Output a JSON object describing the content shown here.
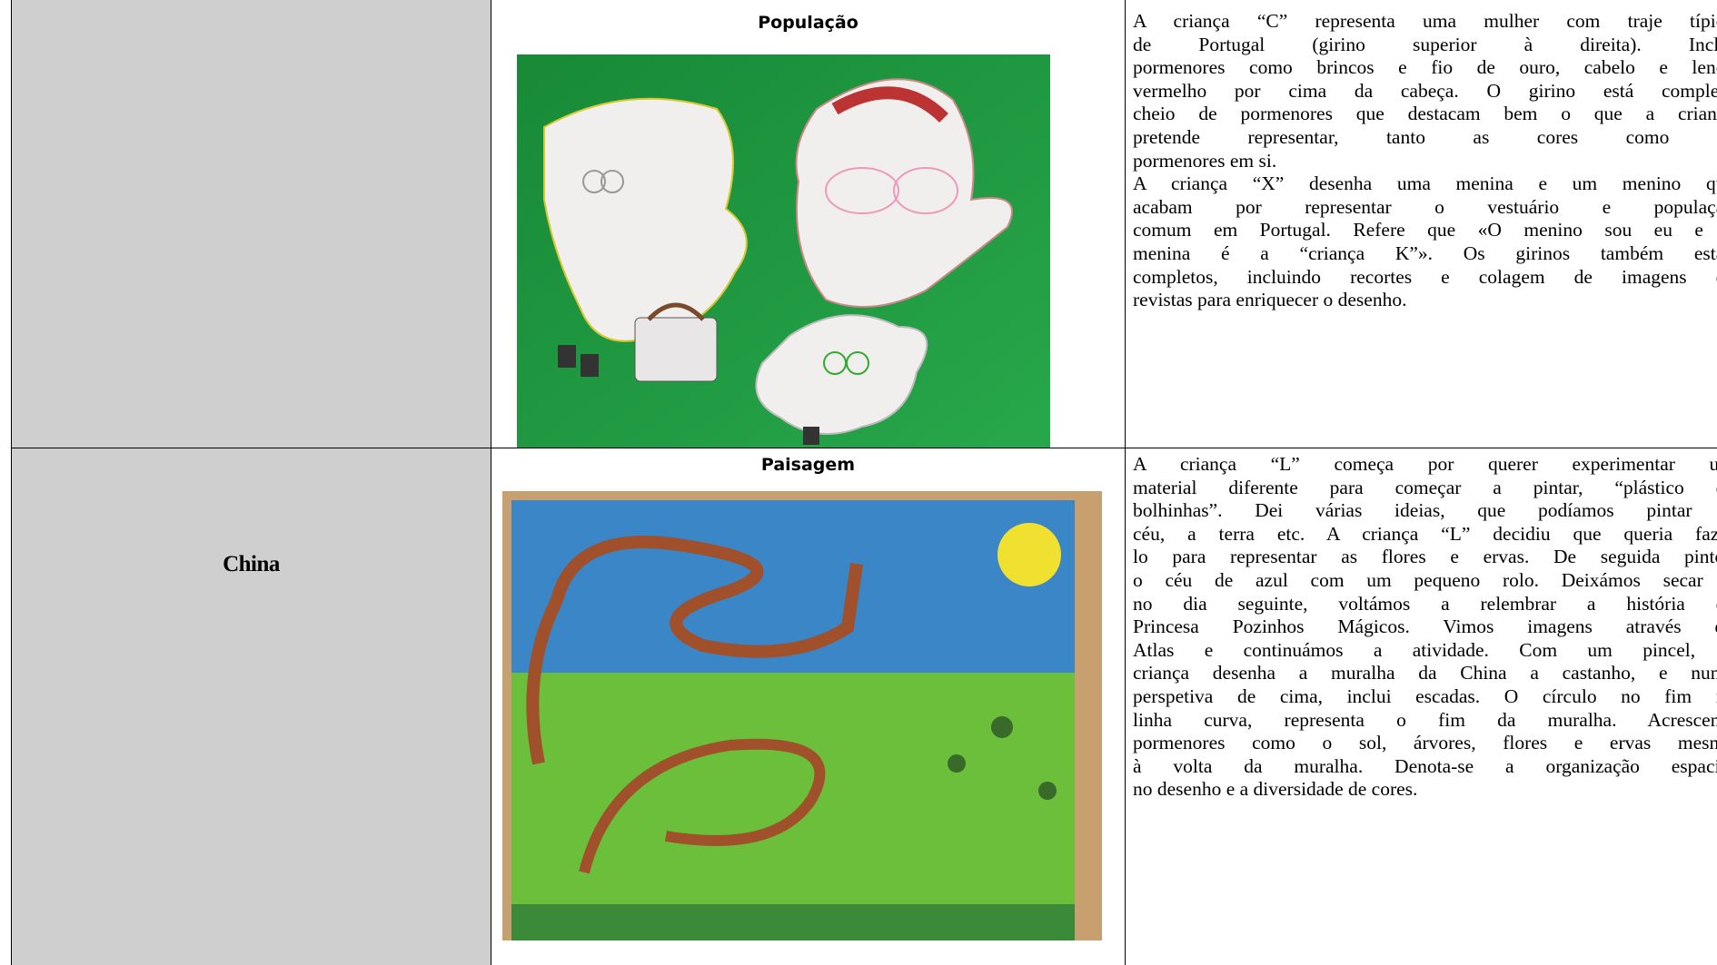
{
  "rows": [
    {
      "label": null,
      "heading": "População",
      "paragraphs": [
        [
          "A criança “C” representa uma mulher com traje típico",
          "de Portugal (girino superior à direita). Inclui",
          "pormenores como brincos e fio de ouro, cabelo e lenço",
          "vermelho por cima da cabeça. O girino está completo",
          "cheio de pormenores que destacam bem o que a criança",
          "pretende representar, tanto as cores como os",
          "pormenores em si."
        ],
        [
          "A criança “X” desenha uma menina e um menino que",
          "acabam por representar o vestuário e população",
          "comum em Portugal. Refere que «O menino sou eu e a",
          "menina é a “criança K”». Os girinos também estão",
          "completos, incluindo recortes e colagem de imagens de",
          "revistas para enriquecer o desenho."
        ]
      ]
    },
    {
      "label": "China",
      "heading": "Paisagem",
      "paragraphs": [
        [
          "A criança “L” começa por querer experimentar um",
          "material diferente para começar a pintar, “plástico de",
          "bolhinhas”. Dei várias ideias, que podíamos pintar o",
          "céu, a terra etc. A criança “L” decidiu que queria fazê-",
          "lo para representar as flores e ervas. De seguida pintou",
          "o céu de azul com um pequeno rolo. Deixámos secar e",
          "no dia seguinte, voltámos a relembrar a história da",
          "Princesa Pozinhos Mágicos. Vimos imagens através do",
          "Atlas e continuámos a atividade. Com um pincel, a",
          "criança desenha a muralha da China a castanho, e numa",
          "perspetiva de cima, inclui escadas. O círculo no fim na",
          "linha curva, representa o fim da muralha. Acrescenta",
          "pormenores como o sol, árvores, flores e ervas mesmo",
          "à volta da muralha. Denota-se a organização espacial",
          "no desenho e a diversidade de cores."
        ]
      ]
    }
  ]
}
